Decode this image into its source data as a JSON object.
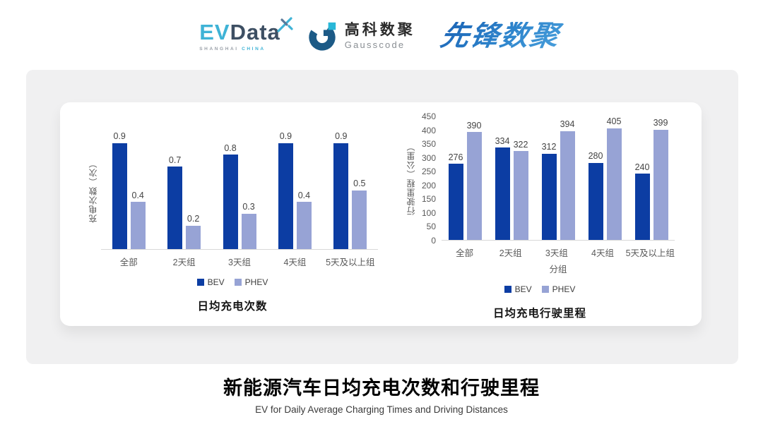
{
  "header": {
    "evdata": {
      "ev": "EV",
      "data": "Data",
      "sub_left": "SHANGHAI",
      "sub_right": "CHINA"
    },
    "gausscode": {
      "cn": "高科数聚",
      "en": "Gausscode"
    },
    "xianfeng": {
      "text": "先锋数聚"
    }
  },
  "colors": {
    "bev": "#0c3da3",
    "phev": "#97a3d5",
    "accent_cyan": "#3fb3d6",
    "logo_slate": "#3d4f63",
    "gausscode_blue": "#1c5a86",
    "baseline": "#d8d8d8",
    "panel_gray": "#f0f0f1"
  },
  "chart_data": [
    {
      "type": "bar",
      "title": "日均充电次数",
      "ylabel": "充电次数（次）",
      "xlabel": "",
      "categories": [
        "全部",
        "2天组",
        "3天组",
        "4天组",
        "5天及以上组"
      ],
      "series": [
        {
          "name": "BEV",
          "color": "#0c3da3",
          "values": [
            0.9,
            0.7,
            0.8,
            0.9,
            0.9
          ]
        },
        {
          "name": "PHEV",
          "color": "#97a3d5",
          "values": [
            0.4,
            0.2,
            0.3,
            0.4,
            0.5
          ]
        }
      ],
      "ylim": [
        0,
        1.0
      ],
      "yticks": [],
      "grid": false,
      "legend_position": "bottom",
      "value_labels": true
    },
    {
      "type": "bar",
      "title": "日均充电行驶里程",
      "ylabel": "行驶里程（公里）",
      "xlabel": "分组",
      "categories": [
        "全部",
        "2天组",
        "3天组",
        "4天组",
        "5天及以上组"
      ],
      "series": [
        {
          "name": "BEV",
          "color": "#0c3da3",
          "values": [
            276,
            334,
            312,
            280,
            240
          ]
        },
        {
          "name": "PHEV",
          "color": "#97a3d5",
          "values": [
            390,
            322,
            394,
            405,
            399
          ]
        }
      ],
      "ylim": [
        0,
        450
      ],
      "yticks": [
        0,
        50,
        100,
        150,
        200,
        250,
        300,
        350,
        400,
        450
      ],
      "grid": false,
      "legend_position": "bottom",
      "value_labels": true
    }
  ],
  "footer": {
    "title": "新能源汽车日均充电次数和行驶里程",
    "subtitle": "EV for Daily Average Charging Times and Driving Distances"
  }
}
